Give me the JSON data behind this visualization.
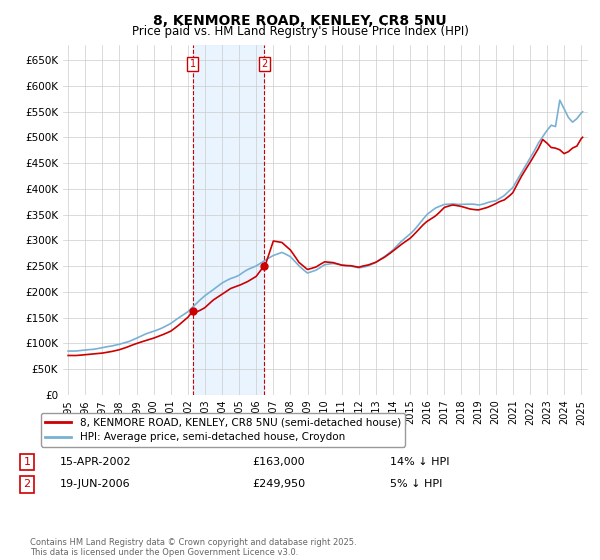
{
  "title": "8, KENMORE ROAD, KENLEY, CR8 5NU",
  "subtitle": "Price paid vs. HM Land Registry's House Price Index (HPI)",
  "ylim": [
    0,
    680000
  ],
  "yticks": [
    0,
    50000,
    100000,
    150000,
    200000,
    250000,
    300000,
    350000,
    400000,
    450000,
    500000,
    550000,
    600000,
    650000
  ],
  "legend_label_red": "8, KENMORE ROAD, KENLEY, CR8 5NU (semi-detached house)",
  "legend_label_blue": "HPI: Average price, semi-detached house, Croydon",
  "sale1_label": "1",
  "sale1_date": "15-APR-2002",
  "sale1_price": "£163,000",
  "sale1_hpi": "14% ↓ HPI",
  "sale1_year": 2002.29,
  "sale1_value": 163000,
  "sale2_label": "2",
  "sale2_date": "19-JUN-2006",
  "sale2_price": "£249,950",
  "sale2_hpi": "5% ↓ HPI",
  "sale2_year": 2006.47,
  "sale2_value": 249950,
  "footer": "Contains HM Land Registry data © Crown copyright and database right 2025.\nThis data is licensed under the Open Government Licence v3.0.",
  "red_color": "#cc0000",
  "blue_color": "#7ab0d4",
  "shade_color": "#ddeeff",
  "vline_color": "#cc0000",
  "grid_color": "#cccccc",
  "bg_color": "#f0f4f8"
}
